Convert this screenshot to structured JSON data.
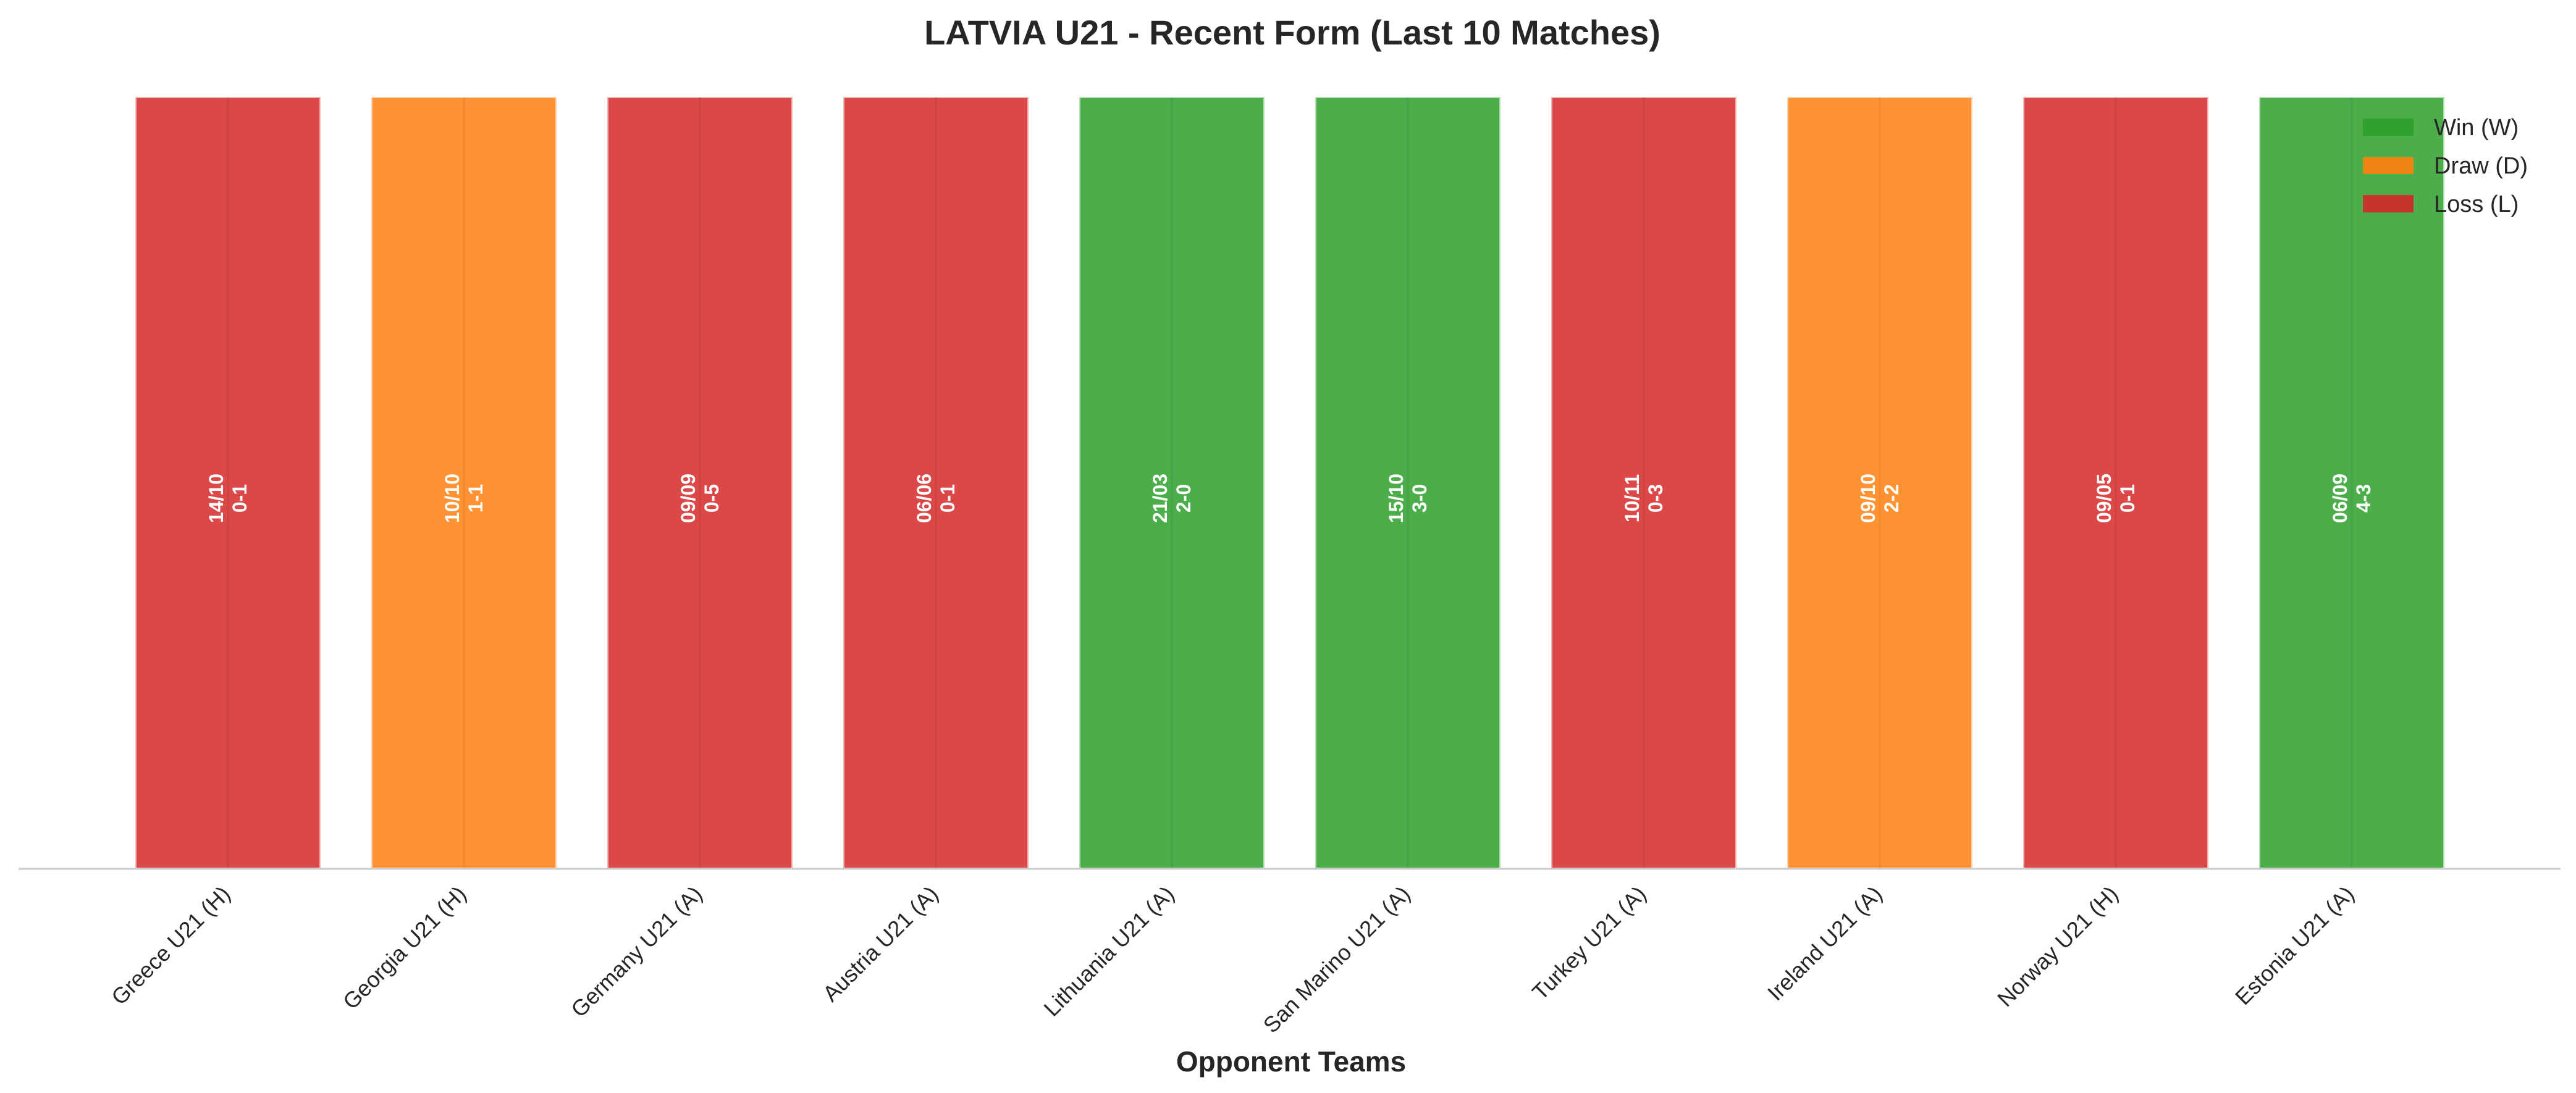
{
  "chart_data": {
    "type": "bar",
    "title": "LATVIA U21 - Recent Form (Last 10 Matches)",
    "xlabel": "Opponent Teams",
    "ylabel": "",
    "ylim": [
      0,
      1
    ],
    "grid": false,
    "legend_position": "top-right",
    "categories": [
      "Greece U21 (H)",
      "Georgia U21 (H)",
      "Germany U21 (A)",
      "Austria U21 (A)",
      "Lithuania U21 (A)",
      "San Marino U21 (A)",
      "Turkey U21 (A)",
      "Ireland U21 (A)",
      "Norway U21 (H)",
      "Estonia U21 (A)"
    ],
    "values": [
      1,
      1,
      1,
      1,
      1,
      1,
      1,
      1,
      1,
      1
    ],
    "results": [
      "L",
      "D",
      "L",
      "L",
      "W",
      "W",
      "L",
      "D",
      "L",
      "W"
    ],
    "dates": [
      "14/10",
      "10/10",
      "09/09",
      "06/06",
      "21/03",
      "15/10",
      "10/11",
      "09/10",
      "09/05",
      "06/09"
    ],
    "scores": [
      "0-1",
      "1-1",
      "0-5",
      "0-1",
      "2-0",
      "3-0",
      "0-3",
      "2-2",
      "0-1",
      "4-3"
    ],
    "legend": [
      {
        "key": "W",
        "label": "Win (W)",
        "color": "#2ca02c"
      },
      {
        "key": "D",
        "label": "Draw (D)",
        "color": "#ff7f0e"
      },
      {
        "key": "L",
        "label": "Loss (L)",
        "color": "#d62728"
      }
    ]
  }
}
